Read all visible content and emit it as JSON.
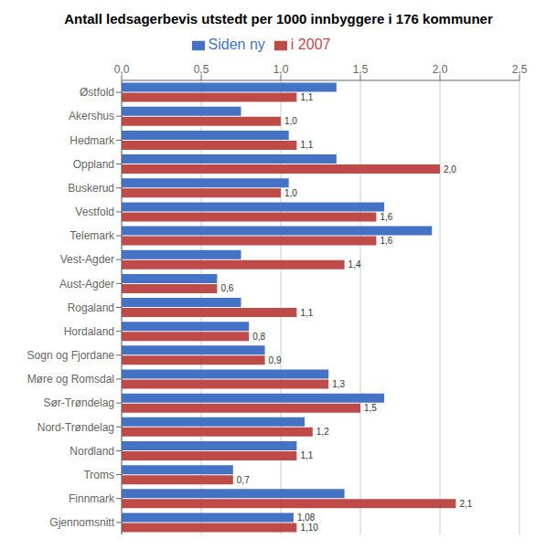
{
  "chart_data": {
    "type": "bar",
    "orientation": "horizontal",
    "title": "Antall ledsagerbevis utstedt per 1000 innbyggere i 176 kommuner",
    "categories": [
      "Østfold",
      "Akershus",
      "Hedmark",
      "Oppland",
      "Buskerud",
      "Vestfold",
      "Telemark",
      "Vest-Agder",
      "Aust-Agder",
      "Rogaland",
      "Hordaland",
      "Sogn og Fjordane",
      "Møre og Romsdal",
      "Sør-Trøndelag",
      "Nord-Trøndelag",
      "Nordland",
      "Troms",
      "Finnmark",
      "Gjennomsnitt"
    ],
    "series": [
      {
        "name": "Siden ny",
        "color": "#4472C4",
        "values": [
          1.35,
          0.75,
          1.05,
          1.35,
          1.05,
          1.65,
          1.95,
          0.75,
          0.6,
          0.75,
          0.8,
          0.9,
          1.3,
          1.65,
          1.15,
          1.1,
          0.7,
          1.4,
          1.08
        ],
        "value_labels": [
          null,
          null,
          null,
          null,
          null,
          null,
          null,
          null,
          null,
          null,
          null,
          null,
          null,
          null,
          null,
          null,
          null,
          null,
          "1,08"
        ]
      },
      {
        "name": "i 2007",
        "color": "#BE4B48",
        "values": [
          1.1,
          1.0,
          1.1,
          2.0,
          1.0,
          1.6,
          1.6,
          1.4,
          0.6,
          1.1,
          0.8,
          0.9,
          1.3,
          1.5,
          1.2,
          1.1,
          0.7,
          2.1,
          1.1
        ],
        "value_labels": [
          "1,1",
          "1,0",
          "1,1",
          "2,0",
          "1,0",
          "1,6",
          "1,6",
          "1,4",
          "0,6",
          "1,1",
          "0,8",
          "0,9",
          "1,3",
          "1,5",
          "1,2",
          "1,1",
          "0,7",
          "2,1",
          "1,10"
        ]
      }
    ],
    "xlim": [
      0,
      2.5
    ],
    "xticks": [
      {
        "value": 0.0,
        "label": "0,0"
      },
      {
        "value": 0.5,
        "label": "0,5"
      },
      {
        "value": 1.0,
        "label": "1,0"
      },
      {
        "value": 1.5,
        "label": "1,5"
      },
      {
        "value": 2.0,
        "label": "2,0"
      },
      {
        "value": 2.5,
        "label": "2,5"
      }
    ],
    "grid": true,
    "legend": "top",
    "data_labels": true
  }
}
